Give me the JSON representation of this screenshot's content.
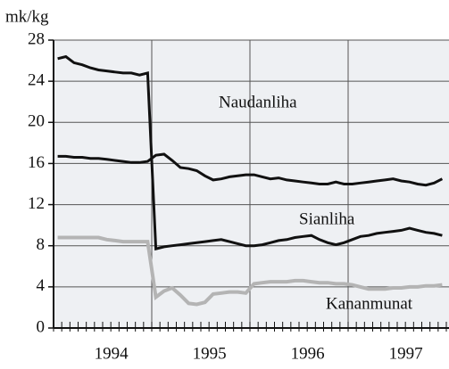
{
  "chart_data": {
    "type": "line",
    "y_label": "mk/kg",
    "categories": [
      null,
      null,
      null,
      null,
      null,
      null,
      "1994",
      null,
      null,
      null,
      null,
      null,
      null,
      null,
      null,
      null,
      null,
      null,
      "1995",
      null,
      null,
      null,
      null,
      null,
      null,
      null,
      null,
      null,
      null,
      null,
      "1996",
      null,
      null,
      null,
      null,
      null,
      null,
      null,
      null,
      null,
      null,
      null,
      "1997",
      null,
      null,
      null,
      null,
      null
    ],
    "series": [
      {
        "name": "Naudanliha",
        "color": "#111111",
        "values": [
          16.7,
          16.7,
          16.6,
          16.6,
          16.5,
          16.5,
          16.4,
          16.3,
          16.2,
          16.1,
          16.1,
          16.2,
          16.8,
          16.9,
          16.3,
          15.6,
          15.5,
          15.3,
          14.8,
          14.4,
          14.5,
          14.7,
          14.8,
          14.9,
          14.9,
          14.7,
          14.5,
          14.6,
          14.4,
          14.3,
          14.2,
          14.1,
          14.0,
          14.0,
          14.2,
          14.0,
          14.0,
          14.1,
          14.2,
          14.3,
          14.4,
          14.5,
          14.3,
          14.2,
          14.0,
          13.9,
          14.1,
          14.5
        ]
      },
      {
        "name": "Sianliha",
        "color": "#111111",
        "values": [
          26.2,
          26.4,
          25.8,
          25.6,
          25.3,
          25.1,
          25.0,
          24.9,
          24.8,
          24.8,
          24.6,
          24.8,
          7.7,
          7.9,
          8.0,
          8.1,
          8.2,
          8.3,
          8.4,
          8.5,
          8.6,
          8.4,
          8.2,
          8.0,
          8.0,
          8.1,
          8.3,
          8.5,
          8.6,
          8.8,
          8.9,
          9.0,
          8.6,
          8.3,
          8.1,
          8.3,
          8.6,
          8.9,
          9.0,
          9.2,
          9.3,
          9.4,
          9.5,
          9.7,
          9.5,
          9.3,
          9.2,
          9.0
        ]
      },
      {
        "name": "Kananmunat",
        "color": "#b4b4b4",
        "values": [
          8.8,
          8.8,
          8.8,
          8.8,
          8.8,
          8.8,
          8.6,
          8.5,
          8.4,
          8.4,
          8.4,
          8.4,
          3.0,
          3.6,
          3.9,
          3.2,
          2.4,
          2.3,
          2.5,
          3.3,
          3.4,
          3.5,
          3.5,
          3.4,
          4.3,
          4.4,
          4.5,
          4.5,
          4.5,
          4.6,
          4.6,
          4.5,
          4.4,
          4.4,
          4.3,
          4.3,
          4.2,
          4.0,
          3.8,
          3.8,
          3.8,
          3.9,
          3.9,
          4.0,
          4.0,
          4.1,
          4.1,
          4.2
        ]
      }
    ],
    "ylim": [
      0,
      28
    ],
    "yticks": [
      0,
      4,
      8,
      12,
      16,
      20,
      24,
      28
    ],
    "grid": true
  }
}
